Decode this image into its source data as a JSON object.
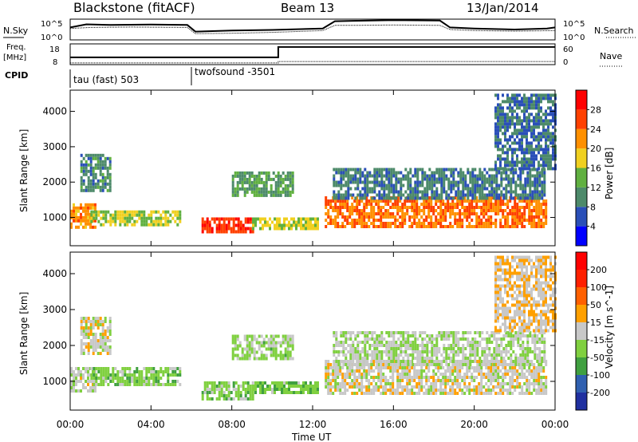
{
  "header": {
    "station": "Blackstone (fitACF)",
    "beam": "Beam 13",
    "date": "13/Jan/2014"
  },
  "top_panels": {
    "nsky_label": "N.Sky",
    "nsky_ticks": [
      "10^5",
      "10^0"
    ],
    "nsearch_label": "N.Search",
    "nsearch_ticks": [
      "10^5",
      "10^0"
    ],
    "freq_label_line1": "Freq.",
    "freq_label_line2": "[MHz]",
    "freq_ticks": [
      "18",
      "8"
    ],
    "nave_label": "Nave",
    "nave_ticks": [
      "60",
      "0"
    ],
    "cpid_label": "CPID",
    "cpid_segments": [
      {
        "label": "tau (fast) 503",
        "start_hour": 0
      },
      {
        "label": "twofsound -3501",
        "start_hour": 6
      }
    ]
  },
  "time_axis": {
    "label": "Time UT",
    "ticks": [
      "00:00",
      "04:00",
      "08:00",
      "12:00",
      "16:00",
      "20:00",
      "00:00"
    ],
    "start_hour": 0,
    "end_hour": 24
  },
  "chart_data": [
    {
      "type": "heatmap",
      "name": "power",
      "ylabel": "Slant Range [km]",
      "yticks": [
        "1000",
        "2000",
        "3000",
        "4000"
      ],
      "ylim": [
        200,
        4600
      ],
      "colorbar_label": "Power [dB]",
      "colorbar_ticks": [
        "4",
        "8",
        "12",
        "16",
        "20",
        "24",
        "28"
      ],
      "colorbar_colors": [
        "#0000ff",
        "#2a4fb8",
        "#4d8a6a",
        "#60b040",
        "#f0d020",
        "#ff9000",
        "#ff4000",
        "#ff0000"
      ],
      "clim": [
        0,
        32
      ],
      "echo_regions": [
        {
          "t_start": 0.0,
          "t_end": 1.3,
          "range_start": 700,
          "range_end": 1400,
          "value": 22
        },
        {
          "t_start": 0.5,
          "t_end": 2.0,
          "range_start": 1800,
          "range_end": 2800,
          "value": 10
        },
        {
          "t_start": 1.0,
          "t_end": 5.5,
          "range_start": 800,
          "range_end": 1200,
          "value": 16
        },
        {
          "t_start": 6.5,
          "t_end": 9.0,
          "range_start": 550,
          "range_end": 1000,
          "value": 27
        },
        {
          "t_start": 8.0,
          "t_end": 11.0,
          "range_start": 1600,
          "range_end": 2300,
          "value": 12
        },
        {
          "t_start": 9.0,
          "t_end": 12.3,
          "range_start": 650,
          "range_end": 1000,
          "value": 17
        },
        {
          "t_start": 12.6,
          "t_end": 23.5,
          "range_start": 700,
          "range_end": 1600,
          "value": 24
        },
        {
          "t_start": 13.0,
          "t_end": 23.5,
          "range_start": 1500,
          "range_end": 2400,
          "value": 9
        },
        {
          "t_start": 21.0,
          "t_end": 24.0,
          "range_start": 2400,
          "range_end": 4500,
          "value": 8
        }
      ]
    },
    {
      "type": "heatmap",
      "name": "velocity",
      "ylabel": "Slant Range [km]",
      "yticks": [
        "1000",
        "2000",
        "3000",
        "4000"
      ],
      "ylim": [
        200,
        4600
      ],
      "colorbar_label": "Velocity [m s^-1]",
      "colorbar_ticks": [
        "200",
        "100",
        "50",
        "15",
        "-15",
        "-50",
        "-100",
        "-200"
      ],
      "colorbar_colors": [
        "#2030a0",
        "#3060b0",
        "#40a040",
        "#80d040",
        "#c8c8c8",
        "#ffa000",
        "#ff6000",
        "#ff2000",
        "#ff0000"
      ],
      "clim": [
        -250,
        250
      ],
      "echo_regions": [
        {
          "t_start": 0.0,
          "t_end": 1.3,
          "range_start": 700,
          "range_end": 1400,
          "value": -5
        },
        {
          "t_start": 0.5,
          "t_end": 2.0,
          "range_start": 1800,
          "range_end": 2800,
          "value": 0
        },
        {
          "t_start": 1.0,
          "t_end": 5.5,
          "range_start": 900,
          "range_end": 1400,
          "value": -60
        },
        {
          "t_start": 6.5,
          "t_end": 9.0,
          "range_start": 550,
          "range_end": 1000,
          "value": -55
        },
        {
          "t_start": 8.0,
          "t_end": 11.0,
          "range_start": 1600,
          "range_end": 2300,
          "value": -40
        },
        {
          "t_start": 9.0,
          "t_end": 12.3,
          "range_start": 650,
          "range_end": 1000,
          "value": -70
        },
        {
          "t_start": 12.6,
          "t_end": 23.5,
          "range_start": 700,
          "range_end": 1600,
          "value": 0
        },
        {
          "t_start": 13.0,
          "t_end": 23.5,
          "range_start": 1500,
          "range_end": 2400,
          "value": -20
        },
        {
          "t_start": 21.0,
          "t_end": 24.0,
          "range_start": 2400,
          "range_end": 4500,
          "value": 20
        }
      ]
    }
  ],
  "line_series": {
    "nsky": {
      "hours": [
        0,
        0.8,
        2,
        4,
        5.8,
        6.2,
        8,
        10,
        12.5,
        13.1,
        14,
        16,
        18.3,
        18.8,
        20,
        22,
        23.6,
        24
      ],
      "levels": [
        0.6,
        0.75,
        0.72,
        0.74,
        0.72,
        0.4,
        0.45,
        0.48,
        0.55,
        0.9,
        0.92,
        0.95,
        0.93,
        0.6,
        0.55,
        0.5,
        0.55,
        0.6
      ]
    },
    "nsearch": {
      "hours": [
        0,
        1,
        3,
        5.8,
        6.2,
        8,
        10,
        12.5,
        13.1,
        14,
        16,
        18.3,
        18.8,
        20,
        22,
        24
      ],
      "levels": [
        0.55,
        0.6,
        0.62,
        0.6,
        0.3,
        0.32,
        0.36,
        0.45,
        0.7,
        0.7,
        0.72,
        0.7,
        0.5,
        0.45,
        0.42,
        0.45
      ]
    },
    "freq": {
      "hours": [
        0,
        10.3,
        10.3,
        24
      ],
      "levels": [
        0.35,
        0.35,
        0.85,
        0.85
      ]
    },
    "nave": {
      "hours": [
        0,
        10.3,
        10.3,
        24
      ],
      "levels": [
        0.08,
        0.08,
        0.15,
        0.15
      ]
    }
  }
}
